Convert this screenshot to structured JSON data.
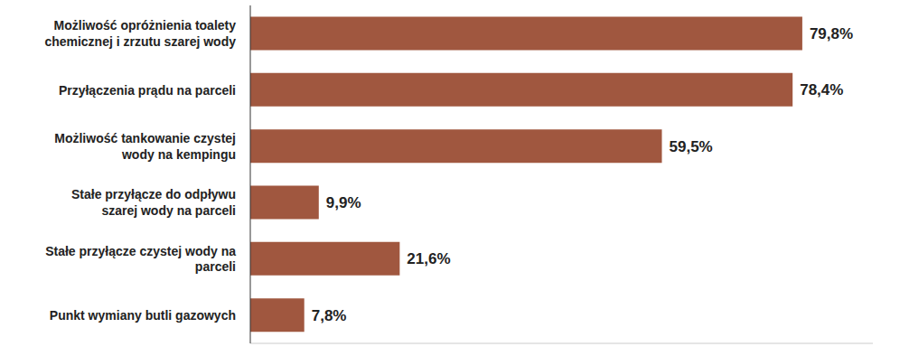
{
  "chart_data": {
    "type": "bar",
    "orientation": "horizontal",
    "categories": [
      "Możliwość opróżnienia toalety chemicznej i zrzutu szarej wody",
      "Przyłączenia prądu na parceli",
      "Możliwość tankowanie czystej wody na kempingu",
      "Stałe przyłącze do odpływu szarej wody na parceli",
      "Stałe przyłącze czystej wody na parceli",
      "Punkt wymiany butli gazowych"
    ],
    "values": [
      79.8,
      78.4,
      59.5,
      9.9,
      21.6,
      7.8
    ],
    "value_labels": [
      "79,8%",
      "78,4%",
      "59,5%",
      "9,9%",
      "21,6%",
      "7,8%"
    ],
    "color": "#a0573f",
    "xlim": [
      0,
      90
    ],
    "data_labels": true,
    "tick_labels": "y"
  }
}
